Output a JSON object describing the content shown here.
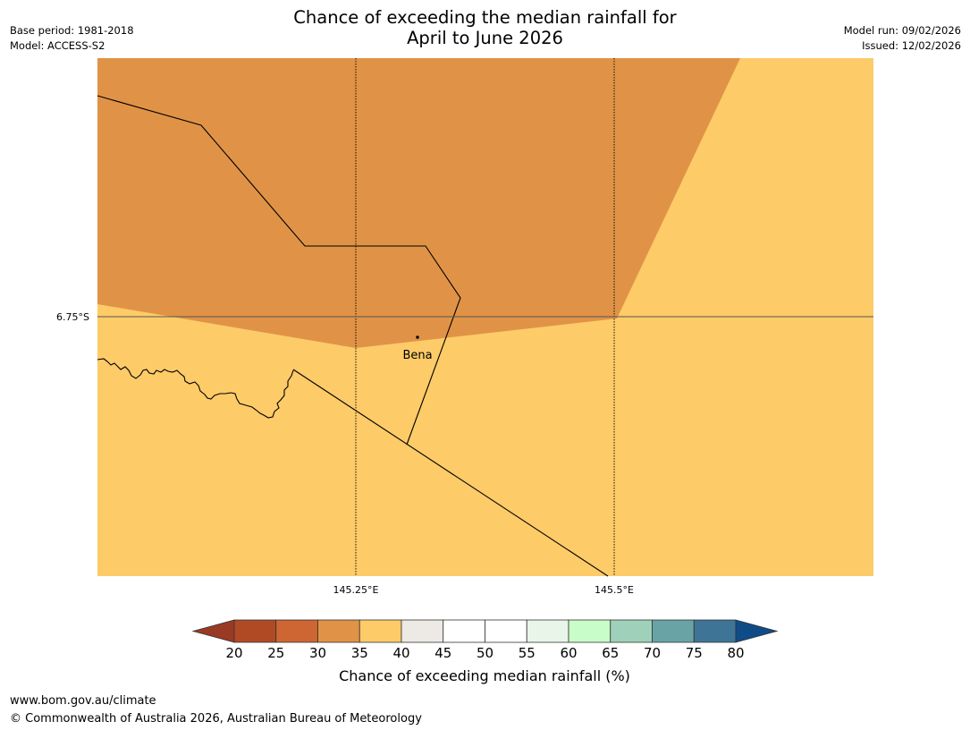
{
  "header": {
    "title_line1": "Chance of exceeding the median rainfall for",
    "title_line2": "April to June 2026",
    "base_period": "Base period: 1981-2018",
    "model": "Model: ACCESS-S2",
    "model_run": "Model run: 09/02/2026",
    "issued": "Issued: 12/02/2026"
  },
  "map": {
    "lat_label": "6.75°S",
    "lon_labels": [
      "145.25°E",
      "145.5°E"
    ],
    "place_label": "Bena",
    "region_colors": {
      "below_35_40": "#e09346",
      "band_40_45": "#fdcb68"
    }
  },
  "colorbar": {
    "ticks": [
      "20",
      "25",
      "30",
      "35",
      "40",
      "45",
      "50",
      "55",
      "60",
      "65",
      "70",
      "75",
      "80"
    ],
    "colors": [
      "#9b3a24",
      "#b04a25",
      "#cd6632",
      "#e09346",
      "#fdcb68",
      "#ede9e4",
      "#ffffff",
      "#ffffff",
      "#e8f5e8",
      "#c8fcc8",
      "#9fd1ba",
      "#6aa3a6",
      "#3e7597",
      "#0f4c87"
    ],
    "label": "Chance of exceeding median rainfall (%)"
  },
  "footer": {
    "website": "www.bom.gov.au/climate",
    "copyright": "© Commonwealth of Australia 2026, Australian Bureau of Meteorology"
  }
}
